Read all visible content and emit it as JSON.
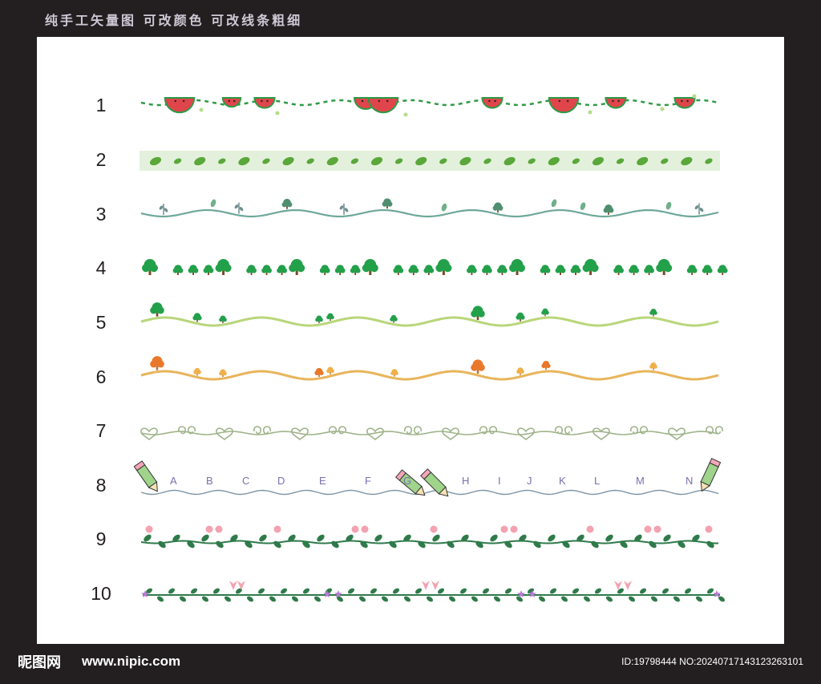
{
  "header": {
    "title": "纯手工矢量图   可改颜色   可改线条粗细"
  },
  "rows": [
    {
      "number": "1",
      "theme": "watermelon-border"
    },
    {
      "number": "2",
      "theme": "leaf-band-border"
    },
    {
      "number": "3",
      "theme": "wavy-plant-border"
    },
    {
      "number": "4",
      "theme": "tree-row-border"
    },
    {
      "number": "5",
      "theme": "green-hill-trees-border"
    },
    {
      "number": "6",
      "theme": "orange-hill-trees-border"
    },
    {
      "number": "7",
      "theme": "heart-swirl-border"
    },
    {
      "number": "8",
      "theme": "pencil-alphabet-border"
    },
    {
      "number": "9",
      "theme": "vine-flower-border"
    },
    {
      "number": "10",
      "theme": "purple-flower-vine-border"
    }
  ],
  "alphabet": [
    "A",
    "B",
    "C",
    "D",
    "E",
    "F",
    "G",
    "H",
    "I",
    "J",
    "K",
    "L",
    "M",
    "N"
  ],
  "colors": {
    "background": "#231f20",
    "panel": "#ffffff",
    "watermelon_red": "#e0454c",
    "leaf_green": "#5aa73a",
    "tree_green": "#23a04a",
    "teal_line": "#6fa89a",
    "hill_green": "#b9d67a",
    "hill_orange": "#e8b55b",
    "orange_tree": "#e9782a",
    "swirl_green": "#9fb38a",
    "letter_purple": "#7a6fb0",
    "vine_green": "#2f7a4a",
    "flower_pink": "#f3a2b0",
    "flower_purple": "#b57cd4"
  },
  "footer": {
    "logo": "昵图网",
    "url": "www.nipic.com",
    "id_text": "ID:19798444 NO:20240717143123263101"
  }
}
